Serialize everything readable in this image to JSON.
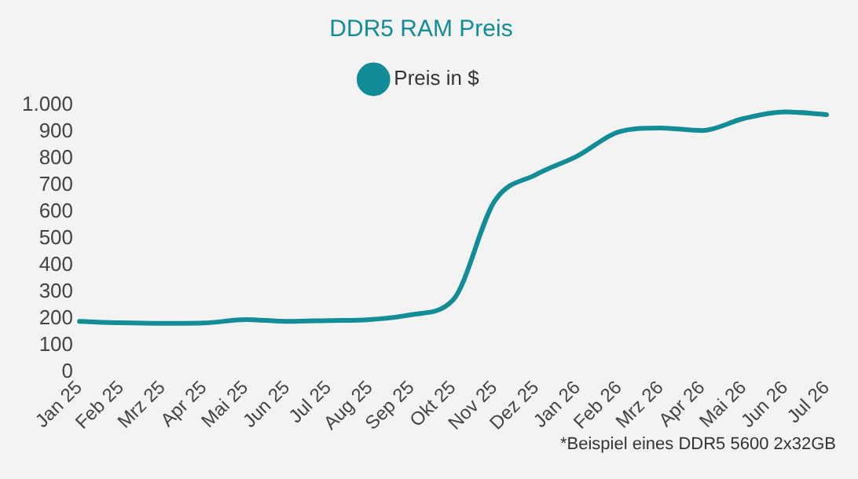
{
  "chart_data": {
    "type": "line",
    "title": "DDR5 RAM Preis",
    "categories": [
      "Jan 25",
      "Feb 25",
      "Mrz 25",
      "Apr 25",
      "Mai 25",
      "Jun 25",
      "Jul 25",
      "Aug 25",
      "Sep 25",
      "Okt 25",
      "Nov 25",
      "Dez 25",
      "Jan 26",
      "Feb 26",
      "Mrz 26",
      "Apr 26",
      "Mai 26",
      "Jun 26",
      "Jul 26"
    ],
    "series": [
      {
        "name": "Preis in $",
        "color": "#128c96",
        "values": [
          190,
          185,
          183,
          184,
          197,
          190,
          193,
          197,
          215,
          270,
          640,
          740,
          810,
          900,
          915,
          905,
          950,
          975,
          965
        ]
      }
    ],
    "ylim": [
      0,
      1000
    ],
    "yticks": [
      0,
      100,
      200,
      300,
      400,
      500,
      600,
      700,
      800,
      900,
      {
        "value": 1000,
        "label": "1.000"
      }
    ],
    "grid": false,
    "legend": "top",
    "marker": "none",
    "annotations": [
      "*Beispiel eines DDR5 5600 2x32GB"
    ]
  }
}
